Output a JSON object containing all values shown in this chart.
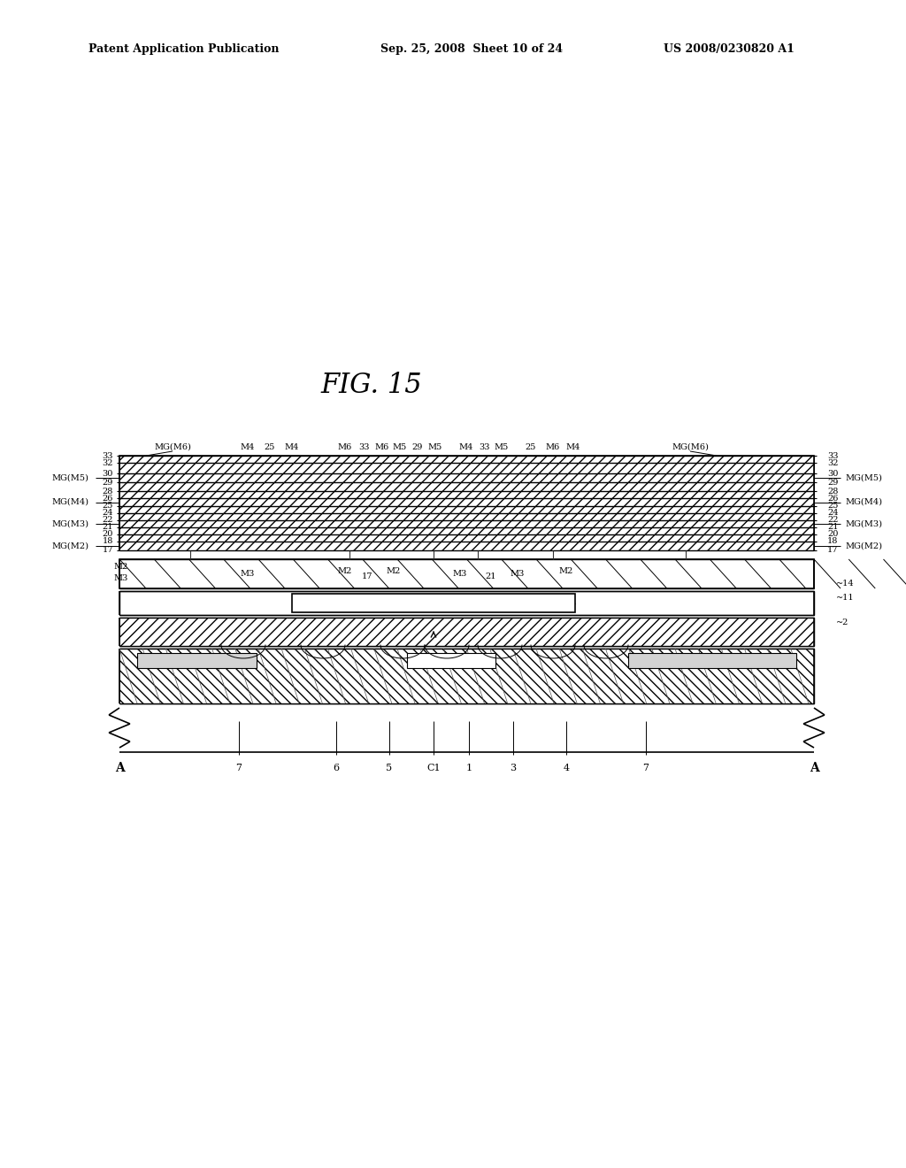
{
  "title": "FIG. 15",
  "header_left": "Patent Application Publication",
  "header_mid": "Sep. 25, 2008  Sheet 10 of 24",
  "header_right": "US 2008/0230820 A1",
  "bg_color": "#ffffff",
  "text_color": "#000000",
  "fig_width": 10.24,
  "fig_height": 13.2
}
